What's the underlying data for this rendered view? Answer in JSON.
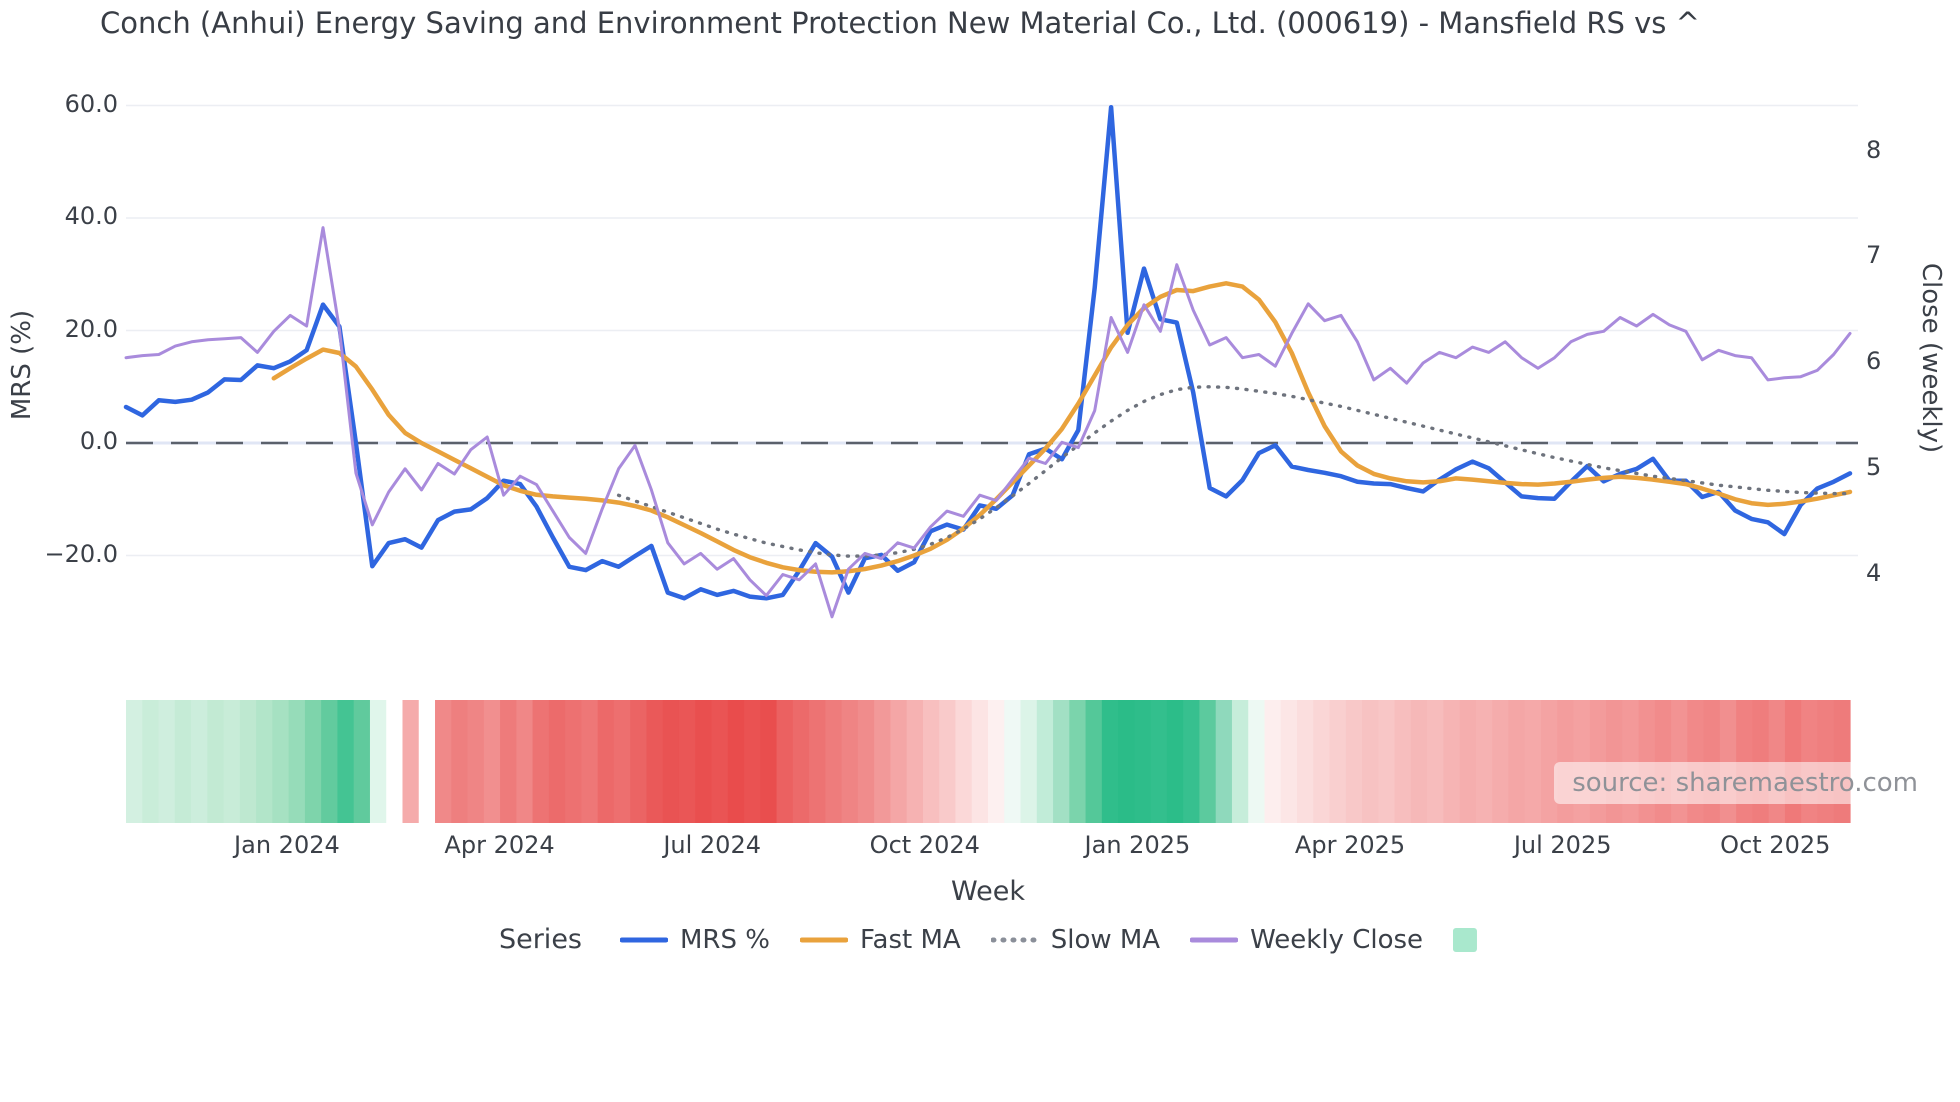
{
  "title": "Conch (Anhui) Energy Saving and Environment Protection New Material Co., Ltd. (000619) - Mansfield RS vs ^",
  "source": {
    "text": "source: sharemaestro.com"
  },
  "legend": {
    "label": "Series",
    "items": [
      {
        "label": "MRS %",
        "color": "#2f66e0",
        "swatch": "line"
      },
      {
        "label": "Fast MA",
        "color": "#e9a23c",
        "swatch": "line"
      },
      {
        "label": "Slow MA",
        "color": "#8a8f99",
        "swatch": "dotted"
      },
      {
        "label": "Weekly Close",
        "color": "#a98bdc",
        "swatch": "line"
      },
      {
        "label": "",
        "color": "#a9e8cd",
        "swatch": "square"
      }
    ]
  },
  "axes": {
    "left": {
      "title": "MRS (%)"
    },
    "right": {
      "title": "Close (weekly)"
    },
    "x": {
      "title": "Week"
    }
  },
  "chart_data": {
    "type": "line",
    "title": "Conch (Anhui) Energy Saving and Environment Protection New Material Co., Ltd. (000619) - Mansfield RS vs ^",
    "x_unit": "weekly points, late Oct 2023 through early Nov 2025 (106 weeks)",
    "x_tick_labels": [
      "Jan 2024",
      "Apr 2024",
      "Jul 2024",
      "Oct 2024",
      "Jan 2025",
      "Apr 2025",
      "Jul 2025",
      "Oct 2025"
    ],
    "x_tick_weeks": [
      9.8,
      22.75,
      35.7,
      48.65,
      61.6,
      74.55,
      87.5,
      100.45
    ],
    "left_axis": {
      "label": "MRS (%)",
      "ticks": [
        60,
        40,
        20,
        0,
        -20
      ],
      "tick_labels": [
        "60.0",
        "40.0",
        "20.0",
        "0.0",
        "−20.0"
      ],
      "range": [
        -32,
        63
      ],
      "grid": true
    },
    "right_axis": {
      "label": "Close (weekly)",
      "ticks": [
        8,
        7,
        6,
        5,
        4
      ],
      "tick_labels": [
        "8",
        "7",
        "6",
        "5",
        "4"
      ],
      "range": [
        3.4,
        8.6
      ],
      "grid": false
    },
    "zero_line": {
      "value": 0,
      "style": "dashed",
      "color": "#5b616c"
    },
    "legend_position": "bottom",
    "series": [
      {
        "name": "MRS %",
        "axis": "left",
        "color": "#2f66e0",
        "style": "solid",
        "width": 4.5,
        "values": [
          6.4,
          4.9,
          7.6,
          7.3,
          7.7,
          9.0,
          11.3,
          11.2,
          13.8,
          13.3,
          14.5,
          16.5,
          24.6,
          20.7,
          0.0,
          -21.9,
          -17.8,
          -17.1,
          -18.6,
          -13.7,
          -12.2,
          -11.8,
          -9.8,
          -6.7,
          -7.3,
          -11.3,
          -16.8,
          -22.0,
          -22.6,
          -21.0,
          -22.0,
          -20.1,
          -18.3,
          -26.6,
          -27.6,
          -26.0,
          -27.0,
          -26.3,
          -27.3,
          -27.6,
          -27.0,
          -22.7,
          -17.8,
          -20.2,
          -26.6,
          -20.5,
          -19.9,
          -22.7,
          -21.2,
          -15.7,
          -14.5,
          -15.4,
          -11.1,
          -11.7,
          -9.3,
          -2.0,
          -1.0,
          -2.9,
          2.3,
          27.6,
          59.7,
          19.6,
          31.0,
          22.0,
          21.4,
          9.0,
          -8.0,
          -9.5,
          -6.6,
          -1.8,
          -0.4,
          -4.2,
          -4.8,
          -5.3,
          -5.9,
          -6.9,
          -7.2,
          -7.3,
          -8.0,
          -8.6,
          -6.5,
          -4.7,
          -3.3,
          -4.5,
          -7.0,
          -9.5,
          -9.8,
          -9.9,
          -6.9,
          -4.1,
          -6.8,
          -5.5,
          -4.6,
          -2.8,
          -6.7,
          -6.7,
          -9.6,
          -8.7,
          -12.0,
          -13.5,
          -14.1,
          -16.2,
          -11.0,
          -8.1,
          -6.9,
          -5.4
        ]
      },
      {
        "name": "Fast MA",
        "axis": "left",
        "color": "#e9a23c",
        "style": "solid",
        "width": 4.5,
        "values": [
          null,
          null,
          null,
          null,
          null,
          null,
          null,
          null,
          null,
          11.5,
          13.3,
          15.0,
          16.6,
          16.0,
          13.6,
          9.5,
          5.0,
          1.8,
          0.0,
          -1.5,
          -3.0,
          -4.5,
          -6.0,
          -7.5,
          -8.5,
          -9.2,
          -9.5,
          -9.7,
          -9.9,
          -10.2,
          -10.6,
          -11.2,
          -12.0,
          -13.2,
          -14.6,
          -16.0,
          -17.5,
          -19.0,
          -20.3,
          -21.3,
          -22.1,
          -22.6,
          -22.9,
          -23.0,
          -22.8,
          -22.4,
          -21.8,
          -21.0,
          -20.0,
          -18.8,
          -17.2,
          -15.2,
          -12.8,
          -10.0,
          -7.0,
          -4.0,
          -1.0,
          2.5,
          7.0,
          12.0,
          17.0,
          21.0,
          24.0,
          26.0,
          27.2,
          27.0,
          27.8,
          28.4,
          27.8,
          25.5,
          21.5,
          16.0,
          9.0,
          3.0,
          -1.5,
          -4.0,
          -5.5,
          -6.3,
          -6.8,
          -7.0,
          -6.8,
          -6.3,
          -6.5,
          -6.8,
          -7.1,
          -7.3,
          -7.4,
          -7.2,
          -6.9,
          -6.5,
          -6.2,
          -6.0,
          -6.2,
          -6.5,
          -6.9,
          -7.3,
          -8.1,
          -9.0,
          -10.0,
          -10.7,
          -11.0,
          -10.8,
          -10.4,
          -9.9,
          -9.3,
          -8.7
        ]
      },
      {
        "name": "Slow MA",
        "axis": "left",
        "color": "#6e737d",
        "style": "dotted",
        "width": 3.4,
        "values": [
          null,
          null,
          null,
          null,
          null,
          null,
          null,
          null,
          null,
          null,
          null,
          null,
          null,
          null,
          null,
          null,
          null,
          null,
          null,
          null,
          null,
          null,
          null,
          null,
          null,
          null,
          null,
          null,
          null,
          null,
          -9.3,
          -10.3,
          -11.3,
          -12.3,
          -13.3,
          -14.3,
          -15.3,
          -16.2,
          -17.0,
          -17.8,
          -18.4,
          -19.0,
          -19.5,
          -19.9,
          -20.1,
          -20.1,
          -19.9,
          -19.5,
          -18.9,
          -18.0,
          -16.8,
          -15.3,
          -13.5,
          -11.5,
          -9.4,
          -7.2,
          -4.9,
          -2.6,
          -0.4,
          1.8,
          3.9,
          5.8,
          7.4,
          8.6,
          9.5,
          9.9,
          10.0,
          9.9,
          9.6,
          9.2,
          8.8,
          8.3,
          7.7,
          7.1,
          6.5,
          5.8,
          5.1,
          4.4,
          3.7,
          3.0,
          2.3,
          1.6,
          0.9,
          0.2,
          -0.5,
          -1.2,
          -1.9,
          -2.6,
          -3.2,
          -3.8,
          -4.4,
          -4.9,
          -5.4,
          -5.9,
          -6.3,
          -6.7,
          -7.1,
          -7.5,
          -7.8,
          -8.1,
          -8.4,
          -8.6,
          -8.8,
          -8.9,
          -9.0,
          -9.0
        ]
      },
      {
        "name": "Weekly Close",
        "axis": "right",
        "color": "#a98bdc",
        "style": "solid",
        "width": 3,
        "values": [
          6.05,
          6.07,
          6.08,
          6.16,
          6.2,
          6.22,
          6.23,
          6.24,
          6.1,
          6.3,
          6.45,
          6.35,
          7.28,
          6.32,
          4.96,
          4.47,
          4.78,
          5.0,
          4.8,
          5.05,
          4.95,
          5.18,
          5.3,
          4.75,
          4.93,
          4.85,
          4.6,
          4.35,
          4.2,
          4.62,
          5.0,
          5.22,
          4.8,
          4.3,
          4.1,
          4.2,
          4.05,
          4.15,
          3.95,
          3.8,
          4.0,
          3.95,
          4.1,
          3.6,
          4.05,
          4.2,
          4.15,
          4.3,
          4.25,
          4.45,
          4.6,
          4.55,
          4.75,
          4.7,
          4.9,
          5.1,
          5.05,
          5.25,
          5.2,
          5.55,
          6.43,
          6.1,
          6.55,
          6.3,
          6.93,
          6.5,
          6.17,
          6.24,
          6.05,
          6.08,
          5.97,
          6.28,
          6.56,
          6.4,
          6.45,
          6.2,
          5.84,
          5.95,
          5.81,
          6.0,
          6.1,
          6.05,
          6.15,
          6.1,
          6.2,
          6.05,
          5.95,
          6.05,
          6.2,
          6.27,
          6.3,
          6.43,
          6.35,
          6.46,
          6.36,
          6.3,
          6.03,
          6.12,
          6.07,
          6.05,
          5.84,
          5.86,
          5.87,
          5.93,
          6.08,
          6.28
        ]
      }
    ],
    "heatmap_strip": {
      "description": "weekly colored band below plot: green = positive relative strength, red = negative, intensity ~ magnitude",
      "colors": [
        "#d3f0e1",
        "#c9edd9",
        "#cfeede",
        "#c5ebd6",
        "#cceddc",
        "#c2ead3",
        "#c8ecd8",
        "#bee8d0",
        "#b2e5c9",
        "#a6e1c2",
        "#96dcb9",
        "#7ed4ab",
        "#62cb9e",
        "#44c493",
        "#60ca9d",
        "#e0f6eb",
        "#ffffff",
        "#f5abab",
        "#ffffff",
        "#f08989",
        "#ee7f7f",
        "#ef8585",
        "#f18f8f",
        "#ee7b7b",
        "#f08787",
        "#ed7373",
        "#ec6b6b",
        "#ed7171",
        "#ee7777",
        "#ec6969",
        "#ed6f6f",
        "#eb6464",
        "#ea5959",
        "#e95353",
        "#ea5656",
        "#e94f4f",
        "#ea5454",
        "#e94c4c",
        "#ea5252",
        "#e94e4e",
        "#eb6161",
        "#ec6a6a",
        "#ed7373",
        "#ee7c7c",
        "#ef8484",
        "#f08c8c",
        "#f29999",
        "#f4a6a6",
        "#f6b2b2",
        "#f8bfbf",
        "#f9caca",
        "#fbd8d8",
        "#fce4e4",
        "#fdf0f0",
        "#eff9f5",
        "#dcf4e8",
        "#c1ecd8",
        "#a2e0c4",
        "#7bd4ac",
        "#54c899",
        "#30be8b",
        "#2bbc88",
        "#2ebd8a",
        "#33bf8d",
        "#2cbd89",
        "#37c08f",
        "#5cca9e",
        "#8fd9bc",
        "#c6edda",
        "#edf9f3",
        "#fdeeee",
        "#fce6e6",
        "#fbdede",
        "#fad6d6",
        "#f9cfcf",
        "#f8c8c8",
        "#f7c2c2",
        "#f8c6c6",
        "#f7bebe",
        "#f6b8b8",
        "#f7bcbc",
        "#f6b4b4",
        "#f5aeae",
        "#f6b2b2",
        "#f5acac",
        "#f4a6a6",
        "#f5a9a9",
        "#f4a3a3",
        "#f39d9d",
        "#f4a1a1",
        "#f39b9b",
        "#f29595",
        "#f39999",
        "#f29191",
        "#f18b8b",
        "#f29393",
        "#f18989",
        "#f08585",
        "#f18f8f",
        "#f08181",
        "#ef7d7d",
        "#f08787",
        "#ef7979",
        "#f08383",
        "#ef7f7f",
        "#ee7b7b"
      ]
    }
  }
}
